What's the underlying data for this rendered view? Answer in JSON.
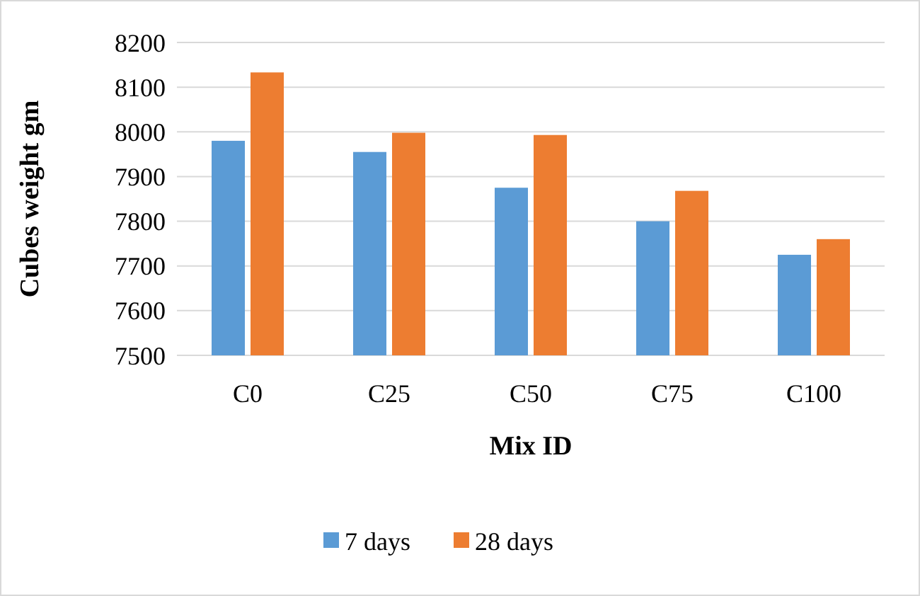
{
  "chart_data": {
    "type": "bar",
    "xlabel": "Mix ID",
    "ylabel": "Cubes weight gm",
    "categories": [
      "C0",
      "C25",
      "C50",
      "C75",
      "C100"
    ],
    "series": [
      {
        "name": "7 days",
        "color": "#5b9bd5",
        "values": [
          7980,
          7955,
          7875,
          7800,
          7725
        ]
      },
      {
        "name": "28 days",
        "color": "#ed7d31",
        "values": [
          8133,
          7998,
          7993,
          7868,
          7760
        ]
      }
    ],
    "ylim": [
      7500,
      8200
    ],
    "yticks": [
      7500,
      7600,
      7700,
      7800,
      7900,
      8000,
      8100,
      8200
    ],
    "grid": "y",
    "legend": "bottom"
  }
}
